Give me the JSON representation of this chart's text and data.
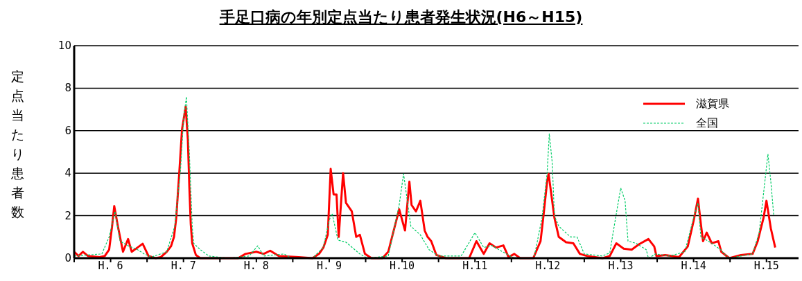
{
  "chart_data": {
    "type": "line",
    "title": "手足口病の年別定点当たり患者発生状況(H6～H15)",
    "ylabel": "定点当たり患者数",
    "xlim": [
      6,
      15.94
    ],
    "xticks": [
      {
        "value": 6,
        "label": null
      },
      {
        "value": 6.5,
        "label": "H. 6"
      },
      {
        "value": 7,
        "label": null
      },
      {
        "value": 7.5,
        "label": "H. 7"
      },
      {
        "value": 8,
        "label": null
      },
      {
        "value": 8.5,
        "label": "H. 8"
      },
      {
        "value": 9,
        "label": null
      },
      {
        "value": 9.5,
        "label": "H. 9"
      },
      {
        "value": 10,
        "label": null
      },
      {
        "value": 10.5,
        "label": "H.10"
      },
      {
        "value": 11,
        "label": null
      },
      {
        "value": 11.5,
        "label": "H.11"
      },
      {
        "value": 12,
        "label": null
      },
      {
        "value": 12.5,
        "label": "H.12"
      },
      {
        "value": 13,
        "label": null
      },
      {
        "value": 13.5,
        "label": "H.13"
      },
      {
        "value": 14,
        "label": null
      },
      {
        "value": 14.5,
        "label": "H.14"
      },
      {
        "value": 15,
        "label": null
      },
      {
        "value": 15.5,
        "label": "H.15"
      }
    ],
    "ylim": [
      0,
      10
    ],
    "yticks": [
      0,
      2,
      4,
      6,
      8,
      10
    ],
    "grid": "y",
    "legend": "top right",
    "marker": "none",
    "series": [
      {
        "name": "滋賀県",
        "color": "#ff0000",
        "line_style": "solid",
        "x": [
          6.0,
          6.06,
          6.12,
          6.19,
          6.35,
          6.42,
          6.48,
          6.52,
          6.55,
          6.6,
          6.67,
          6.74,
          6.79,
          6.87,
          6.94,
          7.02,
          7.12,
          7.19,
          7.27,
          7.33,
          7.37,
          7.4,
          7.44,
          7.48,
          7.53,
          7.56,
          7.58,
          7.6,
          7.62,
          7.67,
          7.73,
          8.25,
          8.35,
          8.5,
          8.6,
          8.69,
          8.81,
          9.08,
          9.27,
          9.36,
          9.42,
          9.48,
          9.52,
          9.56,
          9.6,
          9.63,
          9.69,
          9.73,
          9.81,
          9.87,
          9.92,
          9.99,
          10.08,
          10.23,
          10.31,
          10.4,
          10.46,
          10.54,
          10.6,
          10.63,
          10.69,
          10.75,
          10.81,
          10.85,
          10.9,
          10.97,
          11.1,
          11.42,
          11.52,
          11.62,
          11.7,
          11.79,
          11.89,
          11.96,
          12.04,
          12.12,
          12.3,
          12.4,
          12.44,
          12.49,
          12.51,
          12.54,
          12.59,
          12.65,
          12.75,
          12.85,
          12.94,
          13.04,
          13.25,
          13.35,
          13.44,
          13.54,
          13.65,
          13.75,
          13.88,
          13.96,
          13.99,
          14.11,
          14.3,
          14.42,
          14.5,
          14.56,
          14.6,
          14.63,
          14.68,
          14.75,
          14.84,
          14.88,
          14.99,
          15.15,
          15.31,
          15.38,
          15.46,
          15.5,
          15.56,
          15.62
        ],
        "values": [
          0.3,
          0.1,
          0.3,
          0.1,
          0.05,
          0.1,
          0.4,
          1.5,
          2.45,
          1.5,
          0.3,
          0.9,
          0.3,
          0.5,
          0.68,
          0.1,
          0,
          0.05,
          0.3,
          0.57,
          1.0,
          1.87,
          3.9,
          6.06,
          7.13,
          5.6,
          3.4,
          1.6,
          0.7,
          0.15,
          0,
          0,
          0.2,
          0.3,
          0.2,
          0.35,
          0.1,
          0.05,
          0,
          0.2,
          0.5,
          1.1,
          4.2,
          3.0,
          3.0,
          1.0,
          4.0,
          2.6,
          2.2,
          1.0,
          1.1,
          0.2,
          0,
          0,
          0.3,
          1.5,
          2.3,
          1.3,
          3.6,
          2.5,
          2.2,
          2.7,
          1.3,
          1.0,
          0.8,
          0.15,
          0,
          0,
          0.8,
          0.2,
          0.7,
          0.5,
          0.6,
          0.05,
          0.2,
          0,
          0,
          0.8,
          2.0,
          3.6,
          3.97,
          3.2,
          1.9,
          1.0,
          0.75,
          0.7,
          0.2,
          0.1,
          0,
          0.1,
          0.7,
          0.45,
          0.4,
          0.65,
          0.9,
          0.55,
          0.1,
          0.15,
          0.05,
          0.55,
          1.75,
          2.8,
          1.6,
          0.8,
          1.2,
          0.7,
          0.8,
          0.3,
          0,
          0.15,
          0.2,
          0.8,
          1.9,
          2.7,
          1.4,
          0.5
        ]
      },
      {
        "name": "全国",
        "color": "#00cc66",
        "line_style": "dashed",
        "x": [
          6.0,
          6.38,
          6.48,
          6.56,
          6.63,
          6.73,
          6.87,
          6.96,
          7.06,
          7.27,
          7.38,
          7.46,
          7.5,
          7.54,
          7.58,
          7.62,
          7.64,
          7.73,
          7.85,
          8.12,
          8.4,
          8.52,
          8.6,
          8.88,
          8.98,
          9.27,
          9.42,
          9.5,
          9.54,
          9.62,
          9.73,
          9.92,
          10.02,
          10.31,
          10.46,
          10.52,
          10.62,
          10.75,
          10.87,
          11.0,
          11.31,
          11.5,
          11.62,
          11.73,
          11.88,
          12.04,
          12.31,
          12.42,
          12.49,
          12.52,
          12.56,
          12.59,
          12.65,
          12.81,
          12.9,
          13.0,
          13.25,
          13.35,
          13.42,
          13.5,
          13.56,
          13.6,
          13.71,
          13.85,
          13.88,
          13.98,
          14.17,
          14.38,
          14.5,
          14.56,
          14.6,
          14.75,
          14.87,
          14.98,
          15.31,
          15.4,
          15.52,
          15.56,
          15.6
        ],
        "values": [
          0.1,
          0.2,
          1.0,
          2.2,
          0.8,
          0.6,
          0.4,
          0.2,
          0.05,
          0.3,
          1.5,
          4.2,
          6.5,
          7.6,
          5.0,
          1.5,
          0.7,
          0.4,
          0.1,
          0,
          0.1,
          0.58,
          0.1,
          0.2,
          0,
          0,
          0.5,
          1.8,
          2.1,
          0.85,
          0.75,
          0.2,
          0,
          0.1,
          2.5,
          3.97,
          1.5,
          1.1,
          0.4,
          0.1,
          0.1,
          1.2,
          0.5,
          0.6,
          0.3,
          0,
          0,
          1.9,
          4.0,
          5.85,
          4.5,
          2.0,
          1.5,
          1.0,
          1.0,
          0.2,
          0.1,
          0.25,
          1.7,
          3.3,
          2.7,
          0.8,
          0.7,
          0.4,
          0,
          0.2,
          0.1,
          0.3,
          1.9,
          2.6,
          1.0,
          0.7,
          0.4,
          0,
          0.2,
          1.2,
          4.9,
          3.6,
          2.0
        ]
      }
    ]
  }
}
